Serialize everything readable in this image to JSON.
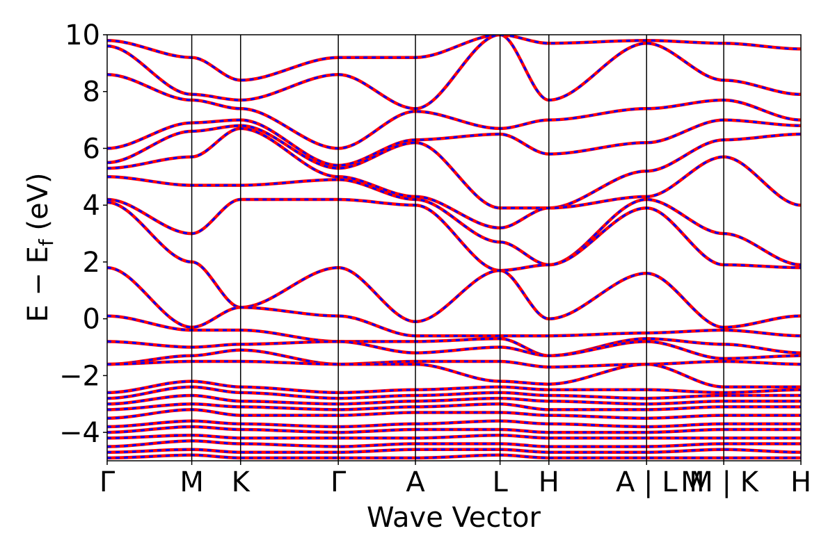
{
  "chart_data": {
    "type": "line",
    "title": "",
    "xlabel": "Wave Vector",
    "ylabel": "E − E_f (eV)",
    "ylabel_main": "E  −  E",
    "ylabel_sub": "f",
    "ylabel_unit": " (eV)",
    "ylim": [
      -5,
      10
    ],
    "yticks": [
      -4,
      -2,
      0,
      2,
      4,
      6,
      8,
      10
    ],
    "ytick_labels": [
      "−4",
      "−2",
      "0",
      "2",
      "4",
      "6",
      "8",
      "10"
    ],
    "xlim": [
      0,
      8.2
    ],
    "kpath": [
      {
        "label": "Γ",
        "x": 0.0
      },
      {
        "label": "M",
        "x": 1.0
      },
      {
        "label": "K",
        "x": 1.577
      },
      {
        "label": "Γ",
        "x": 2.732
      },
      {
        "label": "A",
        "x": 3.644
      },
      {
        "label": "L",
        "x": 4.644
      },
      {
        "label": "H",
        "x": 5.221
      },
      {
        "label": "A | L",
        "x": 6.376
      },
      {
        "label": "M | K",
        "x": 7.288
      },
      {
        "label": "H",
        "x": 8.2
      }
    ],
    "xtick_labels_extra": [
      {
        "label": "M",
        "x": 6.92
      }
    ],
    "grid": false,
    "legend": null,
    "series": [
      {
        "color": "#ff0000",
        "style": "solid"
      },
      {
        "color": "#0000ff",
        "style": "dashed"
      }
    ],
    "bands": [
      {
        "x": [
          0,
          1.0,
          1.577,
          2.732,
          3.644,
          4.644,
          5.221,
          6.376,
          7.288,
          8.2
        ],
        "y": [
          9.8,
          9.2,
          8.4,
          9.2,
          9.2,
          10.0,
          9.7,
          9.8,
          9.7,
          9.5
        ]
      },
      {
        "x": [
          0,
          1.0,
          1.577,
          2.732,
          3.644,
          4.644,
          5.221,
          6.376,
          7.288,
          8.2
        ],
        "y": [
          9.6,
          7.9,
          7.7,
          8.6,
          7.4,
          10.0,
          7.7,
          9.7,
          8.4,
          7.9
        ]
      },
      {
        "x": [
          0,
          1.0,
          1.577,
          2.732,
          3.644,
          4.644,
          5.221,
          6.376,
          7.288,
          8.2
        ],
        "y": [
          8.6,
          7.7,
          7.4,
          6.0,
          7.3,
          6.7,
          7.0,
          7.4,
          7.7,
          7.0
        ]
      },
      {
        "x": [
          0,
          1.0,
          1.577,
          2.732,
          3.644,
          4.644,
          5.221,
          6.376,
          7.288,
          8.2
        ],
        "y": [
          6.0,
          6.9,
          7.0,
          5.4,
          6.3,
          6.5,
          5.8,
          6.2,
          7.0,
          6.8
        ]
      },
      {
        "x": [
          0,
          1.0,
          1.577,
          2.732,
          3.644,
          4.644,
          5.221,
          6.376,
          7.288,
          8.2
        ],
        "y": [
          5.5,
          6.6,
          6.8,
          5.3,
          6.2,
          3.9,
          3.9,
          5.2,
          6.3,
          6.5
        ]
      },
      {
        "x": [
          0,
          1.0,
          1.577,
          2.732,
          3.644,
          4.644,
          5.221,
          6.376,
          7.288,
          8.2
        ],
        "y": [
          5.3,
          5.7,
          6.7,
          5.0,
          4.3,
          3.2,
          3.9,
          4.3,
          5.7,
          4.0
        ]
      },
      {
        "x": [
          0,
          1.0,
          1.577,
          2.732,
          3.644,
          4.644,
          5.221,
          6.376,
          7.288,
          8.2
        ],
        "y": [
          5.0,
          4.7,
          4.7,
          4.9,
          4.2,
          2.7,
          1.9,
          4.2,
          3.0,
          1.9
        ]
      },
      {
        "x": [
          0,
          1.0,
          1.577,
          2.732,
          3.644,
          4.644,
          5.221,
          6.376,
          7.288,
          8.2
        ],
        "y": [
          4.2,
          3.0,
          4.2,
          4.2,
          4.0,
          1.7,
          1.9,
          3.9,
          1.9,
          1.8
        ]
      },
      {
        "x": [
          0,
          1.0,
          1.577,
          2.732,
          3.644,
          4.644,
          5.221,
          6.376,
          7.288,
          8.2
        ],
        "y": [
          4.1,
          2.0,
          0.4,
          1.8,
          -0.1,
          1.7,
          0.0,
          1.6,
          -0.3,
          0.1
        ]
      },
      {
        "x": [
          0,
          1.0,
          1.577,
          2.732,
          3.644,
          4.644,
          5.221,
          6.376,
          7.288,
          8.2
        ],
        "y": [
          1.8,
          -0.3,
          0.4,
          0.1,
          -0.6,
          -0.6,
          -0.6,
          -0.5,
          -0.4,
          -0.6
        ]
      },
      {
        "x": [
          0,
          1.0,
          1.577,
          2.732,
          3.644,
          4.644,
          5.221,
          6.376,
          7.288,
          8.2
        ],
        "y": [
          0.1,
          -0.4,
          -0.4,
          -0.8,
          -0.8,
          -0.7,
          -1.3,
          -0.7,
          -0.9,
          -1.2
        ]
      },
      {
        "x": [
          0,
          1.0,
          1.577,
          2.732,
          3.644,
          4.644,
          5.221,
          6.376,
          7.288,
          8.2
        ],
        "y": [
          -0.8,
          -1.0,
          -0.9,
          -0.8,
          -1.2,
          -1.0,
          -1.3,
          -0.8,
          -1.4,
          -1.3
        ]
      },
      {
        "x": [
          0,
          1.0,
          1.577,
          2.732,
          3.644,
          4.644,
          5.221,
          6.376,
          7.288,
          8.2
        ],
        "y": [
          -1.6,
          -1.3,
          -1.1,
          -1.6,
          -1.5,
          -1.5,
          -1.7,
          -1.6,
          -1.5,
          -1.6
        ]
      },
      {
        "x": [
          0,
          1.0,
          1.577,
          2.732,
          3.644,
          4.644,
          5.221,
          6.376,
          7.288,
          8.2
        ],
        "y": [
          -1.6,
          -1.5,
          -1.5,
          -1.6,
          -1.6,
          -2.2,
          -2.3,
          -1.6,
          -2.4,
          -2.4
        ]
      },
      {
        "x": [
          0,
          1.0,
          1.577,
          2.732,
          3.644,
          4.644,
          5.221,
          6.376,
          7.288,
          8.2
        ],
        "y": [
          -2.6,
          -2.2,
          -2.4,
          -2.6,
          -2.5,
          -2.4,
          -2.5,
          -2.5,
          -2.6,
          -2.5
        ]
      },
      {
        "x": [
          0,
          1.0,
          1.577,
          2.732,
          3.644,
          4.644,
          5.221,
          6.376,
          7.288,
          8.2
        ],
        "y": [
          -2.8,
          -2.4,
          -2.6,
          -2.8,
          -2.7,
          -2.6,
          -2.7,
          -2.8,
          -2.7,
          -2.7
        ]
      },
      {
        "x": [
          0,
          1.0,
          1.577,
          2.732,
          3.644,
          4.644,
          5.221,
          6.376,
          7.288,
          8.2
        ],
        "y": [
          -3.0,
          -2.7,
          -2.9,
          -3.0,
          -2.9,
          -2.8,
          -2.9,
          -3.0,
          -2.9,
          -2.9
        ]
      },
      {
        "x": [
          0,
          1.0,
          1.577,
          2.732,
          3.644,
          4.644,
          5.221,
          6.376,
          7.288,
          8.2
        ],
        "y": [
          -3.2,
          -3.0,
          -3.1,
          -3.2,
          -3.1,
          -3.0,
          -3.2,
          -3.2,
          -3.1,
          -3.1
        ]
      },
      {
        "x": [
          0,
          1.0,
          1.577,
          2.732,
          3.644,
          4.644,
          5.221,
          6.376,
          7.288,
          8.2
        ],
        "y": [
          -3.5,
          -3.2,
          -3.4,
          -3.4,
          -3.3,
          -3.3,
          -3.4,
          -3.5,
          -3.4,
          -3.4
        ]
      },
      {
        "x": [
          0,
          1.0,
          1.577,
          2.732,
          3.644,
          4.644,
          5.221,
          6.376,
          7.288,
          8.2
        ],
        "y": [
          -3.8,
          -3.6,
          -3.7,
          -3.8,
          -3.7,
          -3.6,
          -3.7,
          -3.8,
          -3.7,
          -3.7
        ]
      },
      {
        "x": [
          0,
          1.0,
          1.577,
          2.732,
          3.644,
          4.644,
          5.221,
          6.376,
          7.288,
          8.2
        ],
        "y": [
          -4.0,
          -3.8,
          -3.9,
          -4.0,
          -3.9,
          -3.9,
          -4.0,
          -4.0,
          -3.9,
          -3.9
        ]
      },
      {
        "x": [
          0,
          1.0,
          1.577,
          2.732,
          3.644,
          4.644,
          5.221,
          6.376,
          7.288,
          8.2
        ],
        "y": [
          -4.2,
          -4.1,
          -4.2,
          -4.2,
          -4.2,
          -4.1,
          -4.2,
          -4.2,
          -4.2,
          -4.2
        ]
      },
      {
        "x": [
          0,
          1.0,
          1.577,
          2.732,
          3.644,
          4.644,
          5.221,
          6.376,
          7.288,
          8.2
        ],
        "y": [
          -4.5,
          -4.3,
          -4.4,
          -4.5,
          -4.4,
          -4.4,
          -4.5,
          -4.5,
          -4.4,
          -4.4
        ]
      },
      {
        "x": [
          0,
          1.0,
          1.577,
          2.732,
          3.644,
          4.644,
          5.221,
          6.376,
          7.288,
          8.2
        ],
        "y": [
          -4.7,
          -4.6,
          -4.7,
          -4.7,
          -4.6,
          -4.6,
          -4.7,
          -4.7,
          -4.6,
          -4.7
        ]
      },
      {
        "x": [
          0,
          1.0,
          1.577,
          2.732,
          3.644,
          4.644,
          5.221,
          6.376,
          7.288,
          8.2
        ],
        "y": [
          -4.9,
          -4.8,
          -4.9,
          -4.9,
          -4.9,
          -4.8,
          -4.9,
          -4.9,
          -4.9,
          -4.9
        ]
      }
    ]
  }
}
